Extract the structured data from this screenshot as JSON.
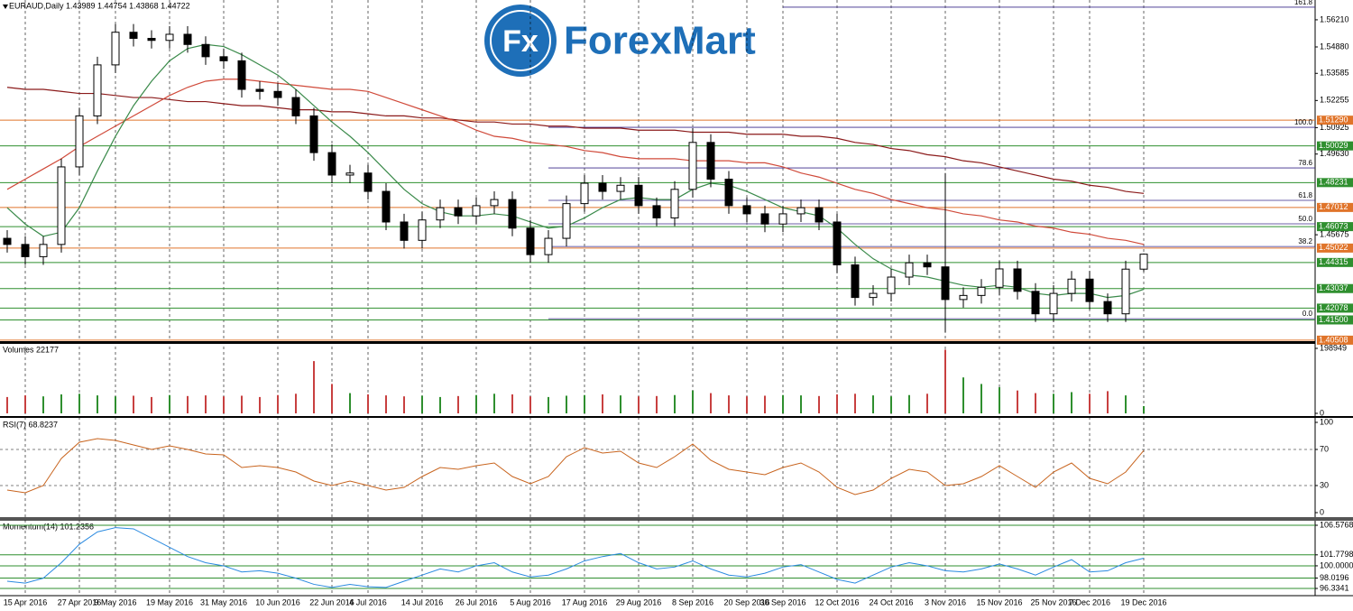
{
  "logo": {
    "badge": "Fx",
    "text": "ForexMart"
  },
  "chart_data": [
    {
      "type": "candlestick",
      "title": "EURAUD,Daily 1.43989 1.44754 1.43868 1.44722",
      "categories": [
        null,
        "15 Apr 2016",
        null,
        null,
        "27 Apr 2016",
        null,
        "9 May 2016",
        null,
        null,
        "19 May 2016",
        null,
        null,
        "31 May 2016",
        null,
        null,
        "10 Jun 2016",
        null,
        null,
        "22 Jun 2016",
        null,
        "4 Jul 2016",
        null,
        null,
        "14 Jul 2016",
        null,
        null,
        "26 Jul 2016",
        null,
        null,
        "5 Aug 2016",
        null,
        null,
        "17 Aug 2016",
        null,
        null,
        "29 Aug 2016",
        null,
        null,
        "8 Sep 2016",
        null,
        null,
        "20 Sep 2016",
        null,
        "30 Sep 2016",
        null,
        null,
        "12 Oct 2016",
        null,
        null,
        "24 Oct 2016",
        null,
        null,
        "3 Nov 2016",
        null,
        null,
        "15 Nov 2016",
        null,
        null,
        "25 Nov 2016",
        null,
        "7 Dec 2016",
        null,
        null,
        "19 Dec 2016"
      ],
      "open": [
        1.455,
        1.452,
        1.446,
        1.452,
        1.49,
        1.515,
        1.54,
        1.556,
        1.553,
        1.552,
        1.555,
        1.55,
        1.544,
        1.542,
        1.528,
        1.527,
        1.524,
        1.515,
        1.497,
        1.486,
        1.487,
        1.478,
        1.463,
        1.454,
        1.464,
        1.47,
        1.466,
        1.471,
        1.474,
        1.46,
        1.447,
        1.455,
        1.472,
        1.482,
        1.478,
        1.481,
        1.471,
        1.465,
        1.479,
        1.502,
        1.484,
        1.471,
        1.467,
        1.462,
        1.467,
        1.47,
        1.463,
        1.442,
        1.426,
        1.428,
        1.436,
        1.443,
        1.441,
        1.425,
        1.427,
        1.431,
        1.44,
        1.429,
        1.418,
        1.428,
        1.435,
        1.424,
        1.418,
        1.43989
      ],
      "high": [
        1.459,
        1.456,
        1.456,
        1.494,
        1.519,
        1.544,
        1.56,
        1.56,
        1.557,
        1.559,
        1.559,
        1.554,
        1.548,
        1.546,
        1.532,
        1.531,
        1.528,
        1.519,
        1.501,
        1.491,
        1.491,
        1.482,
        1.467,
        1.468,
        1.474,
        1.474,
        1.475,
        1.478,
        1.478,
        1.464,
        1.459,
        1.476,
        1.486,
        1.486,
        1.485,
        1.485,
        1.475,
        1.483,
        1.509,
        1.506,
        1.488,
        1.475,
        1.471,
        1.471,
        1.474,
        1.474,
        1.467,
        1.446,
        1.432,
        1.44,
        1.447,
        1.447,
        1.487,
        1.431,
        1.435,
        1.444,
        1.444,
        1.433,
        1.432,
        1.439,
        1.439,
        1.428,
        1.444,
        1.44754
      ],
      "low": [
        1.448,
        1.442,
        1.442,
        1.448,
        1.486,
        1.511,
        1.536,
        1.549,
        1.548,
        1.548,
        1.546,
        1.54,
        1.538,
        1.524,
        1.523,
        1.52,
        1.511,
        1.493,
        1.482,
        1.482,
        1.474,
        1.459,
        1.45,
        1.45,
        1.46,
        1.462,
        1.462,
        1.467,
        1.456,
        1.443,
        1.443,
        1.451,
        1.468,
        1.474,
        1.474,
        1.467,
        1.461,
        1.461,
        1.475,
        1.48,
        1.467,
        1.463,
        1.458,
        1.458,
        1.463,
        1.459,
        1.438,
        1.422,
        1.422,
        1.424,
        1.432,
        1.437,
        1.409,
        1.421,
        1.423,
        1.427,
        1.425,
        1.414,
        1.414,
        1.424,
        1.42,
        1.414,
        1.414,
        1.43868
      ],
      "close": [
        1.452,
        1.446,
        1.452,
        1.49,
        1.515,
        1.54,
        1.556,
        1.553,
        1.552,
        1.555,
        1.55,
        1.544,
        1.542,
        1.528,
        1.527,
        1.524,
        1.515,
        1.497,
        1.486,
        1.487,
        1.478,
        1.463,
        1.454,
        1.464,
        1.47,
        1.466,
        1.471,
        1.474,
        1.46,
        1.447,
        1.455,
        1.472,
        1.482,
        1.478,
        1.481,
        1.471,
        1.465,
        1.479,
        1.502,
        1.484,
        1.471,
        1.467,
        1.462,
        1.467,
        1.47,
        1.463,
        1.442,
        1.426,
        1.428,
        1.436,
        1.443,
        1.441,
        1.425,
        1.427,
        1.431,
        1.44,
        1.429,
        1.418,
        1.428,
        1.435,
        1.424,
        1.418,
        1.43989,
        1.44722
      ],
      "up_color": "#ffffff",
      "down_color": "#000000",
      "lines": [
        {
          "color": "#8b1a1a",
          "values": [
            1.529,
            1.528,
            1.528,
            1.527,
            1.526,
            1.526,
            1.525,
            1.524,
            1.524,
            1.523,
            1.522,
            1.522,
            1.521,
            1.52,
            1.52,
            1.519,
            1.518,
            1.518,
            1.517,
            1.517,
            1.516,
            1.515,
            1.515,
            1.514,
            1.514,
            1.513,
            1.512,
            1.512,
            1.511,
            1.511,
            1.51,
            1.51,
            1.509,
            1.509,
            1.509,
            1.508,
            1.508,
            1.508,
            1.507,
            1.507,
            1.507,
            1.506,
            1.506,
            1.506,
            1.505,
            1.505,
            1.504,
            1.502,
            1.501,
            1.499,
            1.498,
            1.496,
            1.495,
            1.493,
            1.492,
            1.49,
            1.488,
            1.486,
            1.484,
            1.483,
            1.481,
            1.48,
            1.478,
            1.477
          ]
        },
        {
          "color": "#d04a3a",
          "values": [
            1.479,
            1.484,
            1.489,
            1.494,
            1.5,
            1.505,
            1.51,
            1.515,
            1.52,
            1.525,
            1.529,
            1.532,
            1.533,
            1.533,
            1.532,
            1.531,
            1.53,
            1.529,
            1.528,
            1.528,
            1.527,
            1.524,
            1.521,
            1.518,
            1.515,
            1.512,
            1.508,
            1.505,
            1.504,
            1.502,
            1.501,
            1.5,
            1.498,
            1.497,
            1.495,
            1.494,
            1.494,
            1.494,
            1.493,
            1.493,
            1.493,
            1.492,
            1.492,
            1.49,
            1.487,
            1.485,
            1.482,
            1.479,
            1.477,
            1.474,
            1.472,
            1.47,
            1.469,
            1.467,
            1.466,
            1.464,
            1.463,
            1.461,
            1.46,
            1.458,
            1.457,
            1.455,
            1.454,
            1.452
          ]
        },
        {
          "color": "#3a8a4a",
          "values": [
            1.47,
            1.462,
            1.456,
            1.458,
            1.47,
            1.488,
            1.505,
            1.52,
            1.532,
            1.542,
            1.548,
            1.55,
            1.549,
            1.545,
            1.54,
            1.535,
            1.528,
            1.52,
            1.512,
            1.505,
            1.497,
            1.488,
            1.479,
            1.472,
            1.468,
            1.466,
            1.466,
            1.467,
            1.466,
            1.463,
            1.46,
            1.461,
            1.465,
            1.47,
            1.474,
            1.475,
            1.474,
            1.474,
            1.479,
            1.482,
            1.481,
            1.478,
            1.474,
            1.47,
            1.468,
            1.466,
            1.46,
            1.452,
            1.445,
            1.44,
            1.437,
            1.436,
            1.434,
            1.432,
            1.431,
            1.432,
            1.431,
            1.428,
            1.427,
            1.428,
            1.428,
            1.426,
            1.427,
            1.43
          ]
        }
      ],
      "levels": [
        {
          "value": 1.5129,
          "label": "1.51290",
          "color": "#e0742a"
        },
        {
          "value": 1.50029,
          "color": "#2f8f2f"
        },
        {
          "value": 1.48231,
          "color": "#2f8f2f"
        },
        {
          "value": 1.47012,
          "color": "#e0742a"
        },
        {
          "value": 1.46073,
          "color": "#2f8f2f"
        },
        {
          "value": 1.45022,
          "color": "#e0742a"
        },
        {
          "value": 1.44315,
          "color": "#2f8f2f"
        },
        {
          "value": 1.43037,
          "color": "#2f8f2f"
        },
        {
          "value": 1.42078,
          "color": "#2f8f2f"
        },
        {
          "value": 1.415,
          "label": "1.41500",
          "color": "#2f8f2f"
        },
        {
          "value": 1.40508,
          "color": "#e0742a"
        }
      ],
      "fibo_color": "#3a2a8a",
      "fibo": [
        {
          "label": "161.8",
          "value": 1.5683
        },
        {
          "label": "100.0",
          "value": 1.5094
        },
        {
          "label": "78.6",
          "value": 1.4895
        },
        {
          "label": "61.8",
          "value": 1.4736
        },
        {
          "label": "50.0",
          "value": 1.4621
        },
        {
          "label": "38.2",
          "value": 1.451
        },
        {
          "label": "0.0",
          "value": 1.4156
        }
      ],
      "ylim": [
        1.4046,
        1.5718
      ],
      "yticks": [
        {
          "value": 1.5621,
          "label": "1.56210"
        },
        {
          "value": 1.5488,
          "label": "1.54880"
        },
        1.53585,
        1.52255,
        1.50925,
        {
          "value": 1.4963,
          "label": "1.49630"
        },
        1.45675
      ]
    },
    {
      "type": "bar",
      "title": "Volumes 22177",
      "up_color": "#2f8f2f",
      "down_color": "#c84040",
      "values": [
        50000,
        55000,
        52000,
        58000,
        60000,
        55000,
        52000,
        54000,
        50000,
        56000,
        53000,
        55000,
        52000,
        54000,
        50000,
        56000,
        60000,
        160000,
        90000,
        62000,
        58000,
        55000,
        52000,
        54000,
        50000,
        53000,
        56000,
        60000,
        58000,
        52000,
        50000,
        54000,
        56000,
        58000,
        55000,
        52000,
        53000,
        56000,
        70000,
        62000,
        55000,
        52000,
        54000,
        56000,
        55000,
        53000,
        58000,
        60000,
        55000,
        52000,
        56000,
        60000,
        195000,
        110000,
        90000,
        80000,
        70000,
        62000,
        60000,
        65000,
        60000,
        68000,
        55000,
        22177
      ],
      "ylim": [
        0,
        198949
      ],
      "yticks": [
        198949,
        0
      ]
    },
    {
      "type": "line",
      "title": "RSI(7) 68.8237",
      "color": "#c8641e",
      "values": [
        25,
        22,
        30,
        60,
        78,
        82,
        80,
        75,
        70,
        74,
        70,
        65,
        64,
        50,
        52,
        50,
        45,
        35,
        30,
        35,
        30,
        25,
        28,
        40,
        50,
        48,
        52,
        55,
        40,
        32,
        40,
        62,
        72,
        66,
        68,
        55,
        50,
        62,
        76,
        58,
        48,
        45,
        42,
        50,
        55,
        45,
        28,
        20,
        25,
        38,
        48,
        45,
        30,
        32,
        40,
        52,
        40,
        28,
        45,
        55,
        38,
        32,
        45,
        68.8237
      ],
      "ylim": [
        0,
        100
      ],
      "yticks": [
        100,
        70,
        30,
        0
      ]
    },
    {
      "type": "line",
      "title": "Momentum(14) 101.2356",
      "color": "#2a8ae0",
      "level_color": "#2f8f2f",
      "values": [
        97.5,
        97.2,
        98.0,
        100.5,
        103.5,
        105.5,
        106.2,
        106.0,
        104.5,
        103.0,
        101.5,
        100.5,
        100.0,
        99.0,
        99.2,
        98.8,
        98.0,
        97.0,
        96.5,
        97.0,
        96.6,
        96.5,
        97.5,
        98.5,
        99.5,
        99.0,
        100.0,
        100.5,
        99.0,
        98.2,
        98.5,
        99.5,
        100.8,
        101.5,
        102.0,
        100.5,
        99.5,
        99.8,
        100.8,
        99.5,
        98.5,
        98.2,
        98.8,
        99.8,
        100.2,
        99.0,
        97.8,
        97.2,
        98.5,
        99.8,
        100.5,
        100.0,
        99.2,
        99.0,
        99.5,
        100.3,
        99.5,
        98.5,
        99.8,
        101.0,
        99.0,
        99.2,
        100.5,
        101.2356
      ],
      "ylim": [
        96.3341,
        106.5768
      ],
      "yticks": [
        106.5768,
        101.7798,
        {
          "value": 100,
          "label": "100.0000"
        },
        98.0196,
        96.3341
      ]
    }
  ]
}
